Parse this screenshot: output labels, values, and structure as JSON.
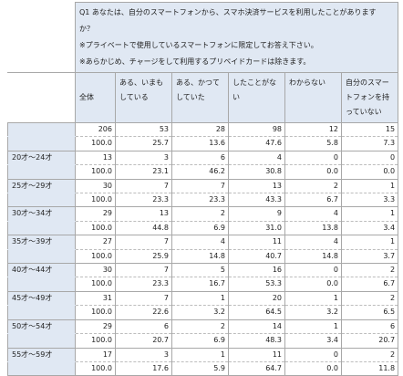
{
  "question": {
    "line1": "Q1 あなたは、自分のスマートフォンから、スマホ決済サービスを利用したことがあります",
    "line2": "か？",
    "line3": "※プライベートで使用しているスマートフォンに限定してお答え下さい。",
    "line4": "※あらかじめ、チャージをして利用するプリペイドカードは除きます。"
  },
  "headers": {
    "total": "全体",
    "cols": [
      "ある、いまもしている",
      "ある、かつてしていた",
      "したことがない",
      "わからない",
      "自分のスマートフォンを持っていない"
    ]
  },
  "rows": [
    {
      "label": "",
      "n": [
        "206",
        "53",
        "28",
        "98",
        "12",
        "15"
      ],
      "p": [
        "100.0",
        "25.7",
        "13.6",
        "47.6",
        "5.8",
        "7.3"
      ]
    },
    {
      "label": "20才～24才",
      "n": [
        "13",
        "3",
        "6",
        "4",
        "0",
        "0"
      ],
      "p": [
        "100.0",
        "23.1",
        "46.2",
        "30.8",
        "0.0",
        "0.0"
      ]
    },
    {
      "label": "25才～29才",
      "n": [
        "30",
        "7",
        "7",
        "13",
        "2",
        "1"
      ],
      "p": [
        "100.0",
        "23.3",
        "23.3",
        "43.3",
        "6.7",
        "3.3"
      ]
    },
    {
      "label": "30才～34才",
      "n": [
        "29",
        "13",
        "2",
        "9",
        "4",
        "1"
      ],
      "p": [
        "100.0",
        "44.8",
        "6.9",
        "31.0",
        "13.8",
        "3.4"
      ]
    },
    {
      "label": "35才～39才",
      "n": [
        "27",
        "7",
        "4",
        "11",
        "4",
        "1"
      ],
      "p": [
        "100.0",
        "25.9",
        "14.8",
        "40.7",
        "14.8",
        "3.7"
      ]
    },
    {
      "label": "40才～44才",
      "n": [
        "30",
        "7",
        "5",
        "16",
        "0",
        "2"
      ],
      "p": [
        "100.0",
        "23.3",
        "16.7",
        "53.3",
        "0.0",
        "6.7"
      ]
    },
    {
      "label": "45才～49才",
      "n": [
        "31",
        "7",
        "1",
        "20",
        "1",
        "2"
      ],
      "p": [
        "100.0",
        "22.6",
        "3.2",
        "64.5",
        "3.2",
        "6.5"
      ]
    },
    {
      "label": "50才～54才",
      "n": [
        "29",
        "6",
        "2",
        "14",
        "1",
        "6"
      ],
      "p": [
        "100.0",
        "20.7",
        "6.9",
        "48.3",
        "3.4",
        "20.7"
      ]
    },
    {
      "label": "55才～59才",
      "n": [
        "17",
        "3",
        "1",
        "11",
        "0",
        "2"
      ],
      "p": [
        "100.0",
        "17.6",
        "5.9",
        "64.7",
        "0.0",
        "11.8"
      ]
    }
  ]
}
